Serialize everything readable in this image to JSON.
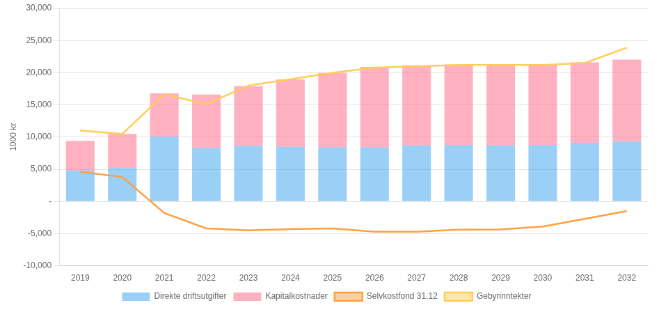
{
  "chart_data": {
    "type": "bar",
    "ylabel": "1000 kr",
    "categories": [
      "2019",
      "2020",
      "2021",
      "2022",
      "2023",
      "2024",
      "2025",
      "2026",
      "2027",
      "2028",
      "2029",
      "2030",
      "2031",
      "2032"
    ],
    "series": [
      {
        "name": "Direkte driftsutgifter",
        "type": "bar",
        "values": [
          4800,
          5200,
          10050,
          8300,
          8650,
          8500,
          8400,
          8400,
          8700,
          8750,
          8700,
          8800,
          9100,
          9300
        ]
      },
      {
        "name": "Kapitalkostnader",
        "type": "bar",
        "values": [
          4600,
          5300,
          6750,
          8300,
          9250,
          10450,
          11550,
          12500,
          12450,
          12500,
          12600,
          12550,
          12500,
          12750
        ]
      },
      {
        "name": "Selvkostfond 31.12",
        "type": "line",
        "values": [
          4600,
          3800,
          -1800,
          -4200,
          -4500,
          -4300,
          -4200,
          -4700,
          -4700,
          -4400,
          -4350,
          -3900,
          -2700,
          -1500
        ]
      },
      {
        "name": "Gebyrinntekter",
        "type": "line",
        "values": [
          11000,
          10500,
          16650,
          15100,
          18000,
          19000,
          20000,
          20800,
          21000,
          21200,
          21200,
          21200,
          21500,
          23900
        ]
      }
    ],
    "stacked": true,
    "ylim": [
      -10000,
      30000
    ],
    "yticks": [
      {
        "value": -10000,
        "label": "-10,000"
      },
      {
        "value": -5000,
        "label": "-5,000"
      },
      {
        "value": 0,
        "label": "-"
      },
      {
        "value": 5000,
        "label": "5,000"
      },
      {
        "value": 10000,
        "label": "10,000"
      },
      {
        "value": 15000,
        "label": "15,000"
      },
      {
        "value": 20000,
        "label": "20,000"
      },
      {
        "value": 25000,
        "label": "25,000"
      },
      {
        "value": 30000,
        "label": "30,000"
      }
    ],
    "grid": true,
    "legend": "bottom"
  }
}
